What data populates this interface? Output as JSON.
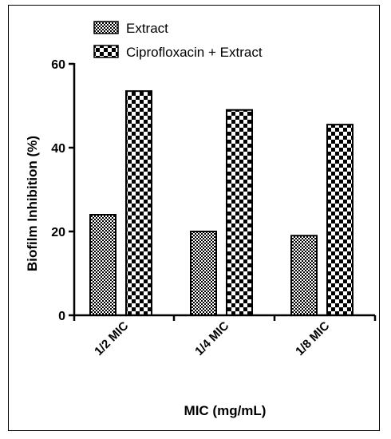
{
  "chart_data": {
    "type": "bar",
    "categories": [
      "1/2 MIC",
      "1/4 MIC",
      "1/8 MIC"
    ],
    "series": [
      {
        "name": "Extract",
        "values": [
          24,
          20,
          19
        ],
        "pattern": "fine-checker"
      },
      {
        "name": "Ciprofloxacin + Extract",
        "values": [
          53.5,
          49,
          45.5
        ],
        "pattern": "coarse-checker"
      }
    ],
    "xlabel": "MIC (mg/mL)",
    "ylabel": "Biofilm Inhibition (%)",
    "ylim": [
      0,
      60
    ],
    "yticks": [
      0,
      20,
      40,
      60
    ],
    "grid": false,
    "legend": "top",
    "colors": {
      "ink": "#000000",
      "background": "#ffffff"
    }
  }
}
